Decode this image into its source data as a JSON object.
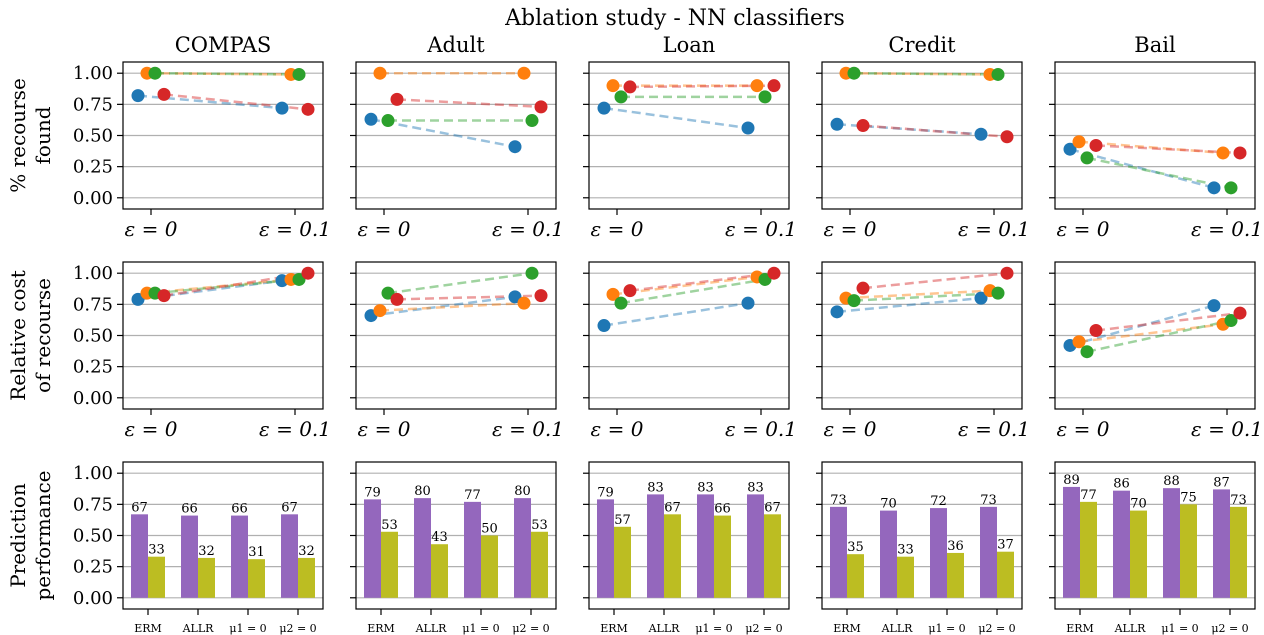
{
  "title": "Ablation study - NN classifiers",
  "datasets": [
    "COMPAS",
    "Adult",
    "Loan",
    "Credit",
    "Bail"
  ],
  "row_labels": [
    [
      "% recourse",
      "found"
    ],
    [
      "Relative cost",
      "of recourse"
    ],
    [
      "Prediction",
      "performance"
    ]
  ],
  "y_ticks": [
    "0.00",
    "0.25",
    "0.50",
    "0.75",
    "1.00"
  ],
  "x_ticks": [
    "ε = 0",
    "ε = 0.1"
  ],
  "bar_categories": [
    "ERM",
    "ALLR",
    "μ1 = 0",
    "μ2 = 0"
  ],
  "colors": {
    "series": [
      "#1f77b4",
      "#ff7f0e",
      "#2ca02c",
      "#d62728"
    ],
    "bars": [
      "#9467bd",
      "#bcbd22"
    ]
  },
  "chart_data": [
    {
      "type": "line",
      "metric": "% recourse found",
      "x": [
        "ε = 0",
        "ε = 0.1"
      ],
      "ylim": [
        0,
        1
      ],
      "grid": true,
      "series_by_dataset": {
        "COMPAS": [
          [
            0.82,
            0.72
          ],
          [
            1.0,
            0.99
          ],
          [
            1.0,
            0.99
          ],
          [
            0.83,
            0.71
          ]
        ],
        "Adult": [
          [
            0.63,
            0.41
          ],
          [
            1.0,
            1.0
          ],
          [
            0.62,
            0.62
          ],
          [
            0.79,
            0.73
          ]
        ],
        "Loan": [
          [
            0.72,
            0.56
          ],
          [
            0.9,
            0.9
          ],
          [
            0.81,
            0.81
          ],
          [
            0.89,
            0.9
          ]
        ],
        "Credit": [
          [
            0.59,
            0.51
          ],
          [
            1.0,
            0.99
          ],
          [
            1.0,
            0.99
          ],
          [
            0.58,
            0.49
          ]
        ],
        "Bail": [
          [
            0.39,
            0.08
          ],
          [
            0.45,
            0.36
          ],
          [
            0.32,
            0.08
          ],
          [
            0.42,
            0.36
          ]
        ]
      }
    },
    {
      "type": "line",
      "metric": "Relative cost of recourse",
      "x": [
        "ε = 0",
        "ε = 0.1"
      ],
      "ylim": [
        0,
        1
      ],
      "grid": true,
      "series_by_dataset": {
        "COMPAS": [
          [
            0.79,
            0.94
          ],
          [
            0.84,
            0.95
          ],
          [
            0.84,
            0.95
          ],
          [
            0.82,
            1.0
          ]
        ],
        "Adult": [
          [
            0.66,
            0.81
          ],
          [
            0.7,
            0.76
          ],
          [
            0.84,
            1.0
          ],
          [
            0.79,
            0.82
          ]
        ],
        "Loan": [
          [
            0.58,
            0.76
          ],
          [
            0.83,
            0.97
          ],
          [
            0.76,
            0.95
          ],
          [
            0.86,
            1.0
          ]
        ],
        "Credit": [
          [
            0.69,
            0.8
          ],
          [
            0.8,
            0.86
          ],
          [
            0.78,
            0.84
          ],
          [
            0.88,
            1.0
          ]
        ],
        "Bail": [
          [
            0.42,
            0.74
          ],
          [
            0.45,
            0.59
          ],
          [
            0.37,
            0.62
          ],
          [
            0.54,
            0.68
          ]
        ]
      }
    },
    {
      "type": "bar",
      "metric": "Prediction performance",
      "categories": [
        "ERM",
        "ALLR",
        "μ1 = 0",
        "μ2 = 0"
      ],
      "ylim": [
        0,
        1
      ],
      "grid": true,
      "values_by_dataset": {
        "COMPAS": [
          [
            67,
            33
          ],
          [
            66,
            32
          ],
          [
            66,
            31
          ],
          [
            67,
            32
          ]
        ],
        "Adult": [
          [
            79,
            53
          ],
          [
            80,
            43
          ],
          [
            77,
            50
          ],
          [
            80,
            53
          ]
        ],
        "Loan": [
          [
            79,
            57
          ],
          [
            83,
            67
          ],
          [
            83,
            66
          ],
          [
            83,
            67
          ]
        ],
        "Credit": [
          [
            73,
            35
          ],
          [
            70,
            33
          ],
          [
            72,
            36
          ],
          [
            73,
            37
          ]
        ],
        "Bail": [
          [
            89,
            77
          ],
          [
            86,
            70
          ],
          [
            88,
            75
          ],
          [
            87,
            73
          ]
        ]
      }
    }
  ]
}
